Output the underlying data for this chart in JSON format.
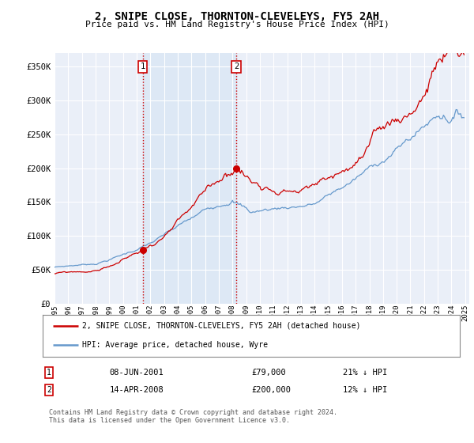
{
  "title": "2, SNIPE CLOSE, THORNTON-CLEVELEYS, FY5 2AH",
  "subtitle": "Price paid vs. HM Land Registry's House Price Index (HPI)",
  "ylabel_ticks": [
    "£0",
    "£50K",
    "£100K",
    "£150K",
    "£200K",
    "£250K",
    "£300K",
    "£350K"
  ],
  "ytick_values": [
    0,
    50000,
    100000,
    150000,
    200000,
    250000,
    300000,
    350000
  ],
  "ylim": [
    0,
    370000
  ],
  "xlim_start": 1995.0,
  "xlim_end": 2025.3,
  "hpi_color": "#6699cc",
  "price_color": "#cc0000",
  "marker1_date": 2001.44,
  "marker1_price": 79000,
  "marker2_date": 2008.28,
  "marker2_price": 200000,
  "vline_color": "#cc0000",
  "shade_color": "#dde8f5",
  "legend_line1": "2, SNIPE CLOSE, THORNTON-CLEVELEYS, FY5 2AH (detached house)",
  "legend_line2": "HPI: Average price, detached house, Wyre",
  "table_row1_num": "1",
  "table_row1_date": "08-JUN-2001",
  "table_row1_price": "£79,000",
  "table_row1_hpi": "21% ↓ HPI",
  "table_row2_num": "2",
  "table_row2_date": "14-APR-2008",
  "table_row2_price": "£200,000",
  "table_row2_hpi": "12% ↓ HPI",
  "footnote": "Contains HM Land Registry data © Crown copyright and database right 2024.\nThis data is licensed under the Open Government Licence v3.0.",
  "bg_color": "#ffffff",
  "plot_bg_color": "#eaeff8",
  "grid_color": "#ffffff"
}
